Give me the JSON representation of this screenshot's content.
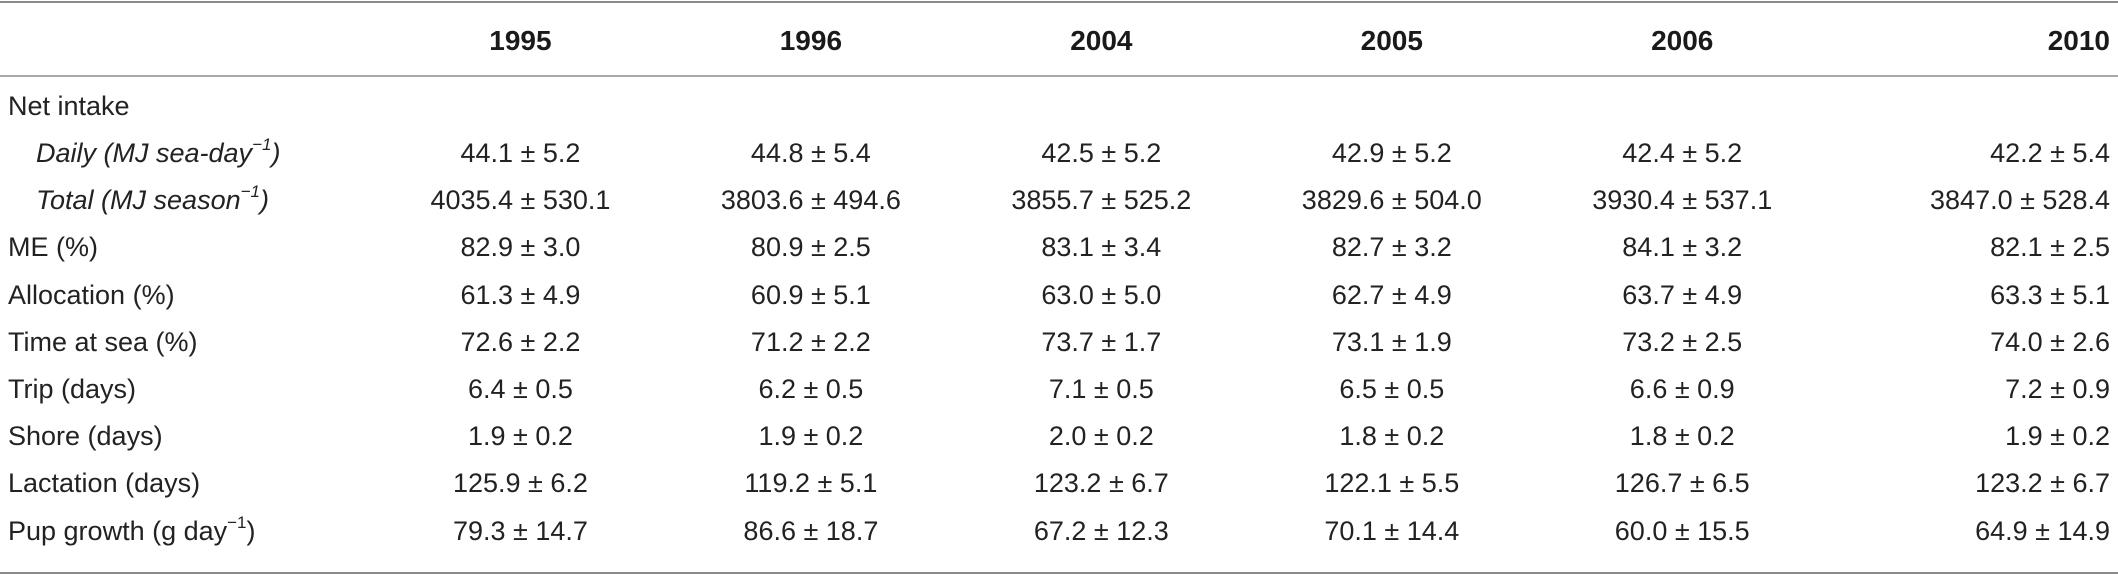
{
  "table": {
    "columns": [
      "",
      "1995",
      "1996",
      "2004",
      "2005",
      "2006",
      "2010"
    ],
    "rows": [
      {
        "label": "Net intake",
        "label_sup": "",
        "label_tail": "",
        "sub": false,
        "values": [
          "",
          "",
          "",
          "",
          "",
          ""
        ]
      },
      {
        "label": "Daily (MJ sea-day",
        "label_sup": "−1",
        "label_tail": ")",
        "sub": true,
        "values": [
          "44.1 ± 5.2",
          "44.8 ± 5.4",
          "42.5 ± 5.2",
          "42.9 ± 5.2",
          "42.4 ± 5.2",
          "42.2 ± 5.4"
        ]
      },
      {
        "label": "Total (MJ season",
        "label_sup": "−1",
        "label_tail": ")",
        "sub": true,
        "values": [
          "4035.4 ± 530.1",
          "3803.6 ± 494.6",
          "3855.7 ± 525.2",
          "3829.6 ± 504.0",
          "3930.4 ± 537.1",
          "3847.0 ± 528.4"
        ]
      },
      {
        "label": "ME (%)",
        "label_sup": "",
        "label_tail": "",
        "sub": false,
        "values": [
          "82.9 ± 3.0",
          "80.9 ± 2.5",
          "83.1 ± 3.4",
          "82.7 ± 3.2",
          "84.1 ± 3.2",
          "82.1 ± 2.5"
        ]
      },
      {
        "label": "Allocation (%)",
        "label_sup": "",
        "label_tail": "",
        "sub": false,
        "values": [
          "61.3 ± 4.9",
          "60.9 ± 5.1",
          "63.0 ± 5.0",
          "62.7 ± 4.9",
          "63.7 ± 4.9",
          "63.3 ± 5.1"
        ]
      },
      {
        "label": "Time at sea (%)",
        "label_sup": "",
        "label_tail": "",
        "sub": false,
        "values": [
          "72.6 ± 2.2",
          "71.2 ± 2.2",
          "73.7 ± 1.7",
          "73.1 ± 1.9",
          "73.2 ± 2.5",
          "74.0 ± 2.6"
        ]
      },
      {
        "label": "Trip (days)",
        "label_sup": "",
        "label_tail": "",
        "sub": false,
        "values": [
          "6.4 ± 0.5",
          "6.2 ± 0.5",
          "7.1 ± 0.5",
          "6.5 ± 0.5",
          "6.6 ± 0.9",
          "7.2 ± 0.9"
        ]
      },
      {
        "label": "Shore (days)",
        "label_sup": "",
        "label_tail": "",
        "sub": false,
        "values": [
          "1.9 ± 0.2",
          "1.9 ± 0.2",
          "2.0 ± 0.2",
          "1.8 ± 0.2",
          "1.8 ± 0.2",
          "1.9 ± 0.2"
        ]
      },
      {
        "label": "Lactation (days)",
        "label_sup": "",
        "label_tail": "",
        "sub": false,
        "values": [
          "125.9 ± 6.2",
          "119.2 ± 5.1",
          "123.2 ± 6.7",
          "122.1 ± 5.5",
          "126.7 ± 6.5",
          "123.2 ± 6.7"
        ]
      },
      {
        "label": "Pup growth (g day",
        "label_sup": "−1",
        "label_tail": ")",
        "sub": false,
        "values": [
          "79.3 ± 14.7",
          "86.6 ± 18.7",
          "67.2 ± 12.3",
          "70.1 ± 14.4",
          "60.0 ± 15.5",
          "64.9 ± 14.9"
        ]
      }
    ]
  }
}
